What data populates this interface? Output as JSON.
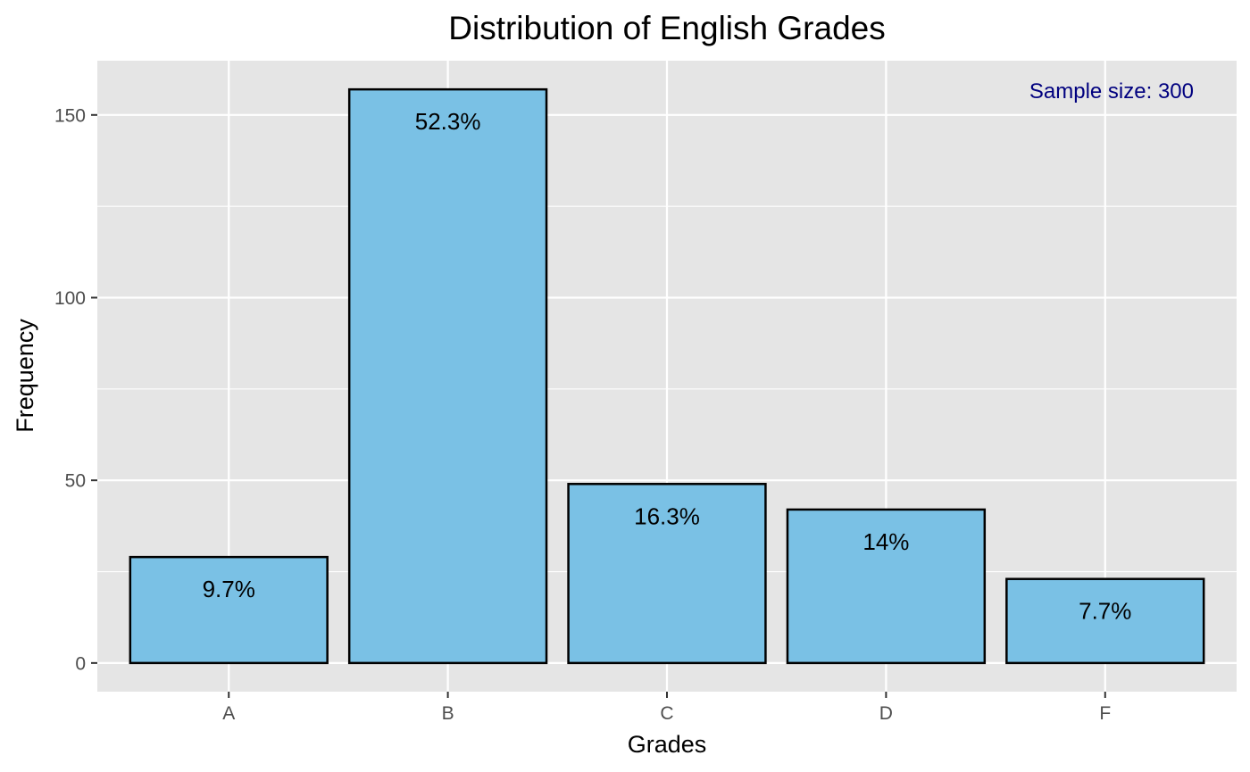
{
  "chart_data": {
    "type": "bar",
    "title": "Distribution of English Grades",
    "xlabel": "Grades",
    "ylabel": "Frequency",
    "categories": [
      "A",
      "B",
      "C",
      "D",
      "F"
    ],
    "values": [
      29,
      157,
      49,
      42,
      23
    ],
    "bar_labels": [
      "9.7%",
      "52.3%",
      "16.3%",
      "14%",
      "7.7%"
    ],
    "ylim": [
      -7.85,
      164.85
    ],
    "yticks": [
      0,
      50,
      100,
      150
    ],
    "ytick_labels": [
      "0",
      "50",
      "100",
      "150"
    ],
    "grid": true,
    "annotation": "Sample size: 300",
    "colors": {
      "bar_fill": "#7ac1e5",
      "bar_stroke": "#000000",
      "panel_background": "#e5e5e5",
      "grid": "#ffffff",
      "annotation": "#00007f"
    }
  }
}
